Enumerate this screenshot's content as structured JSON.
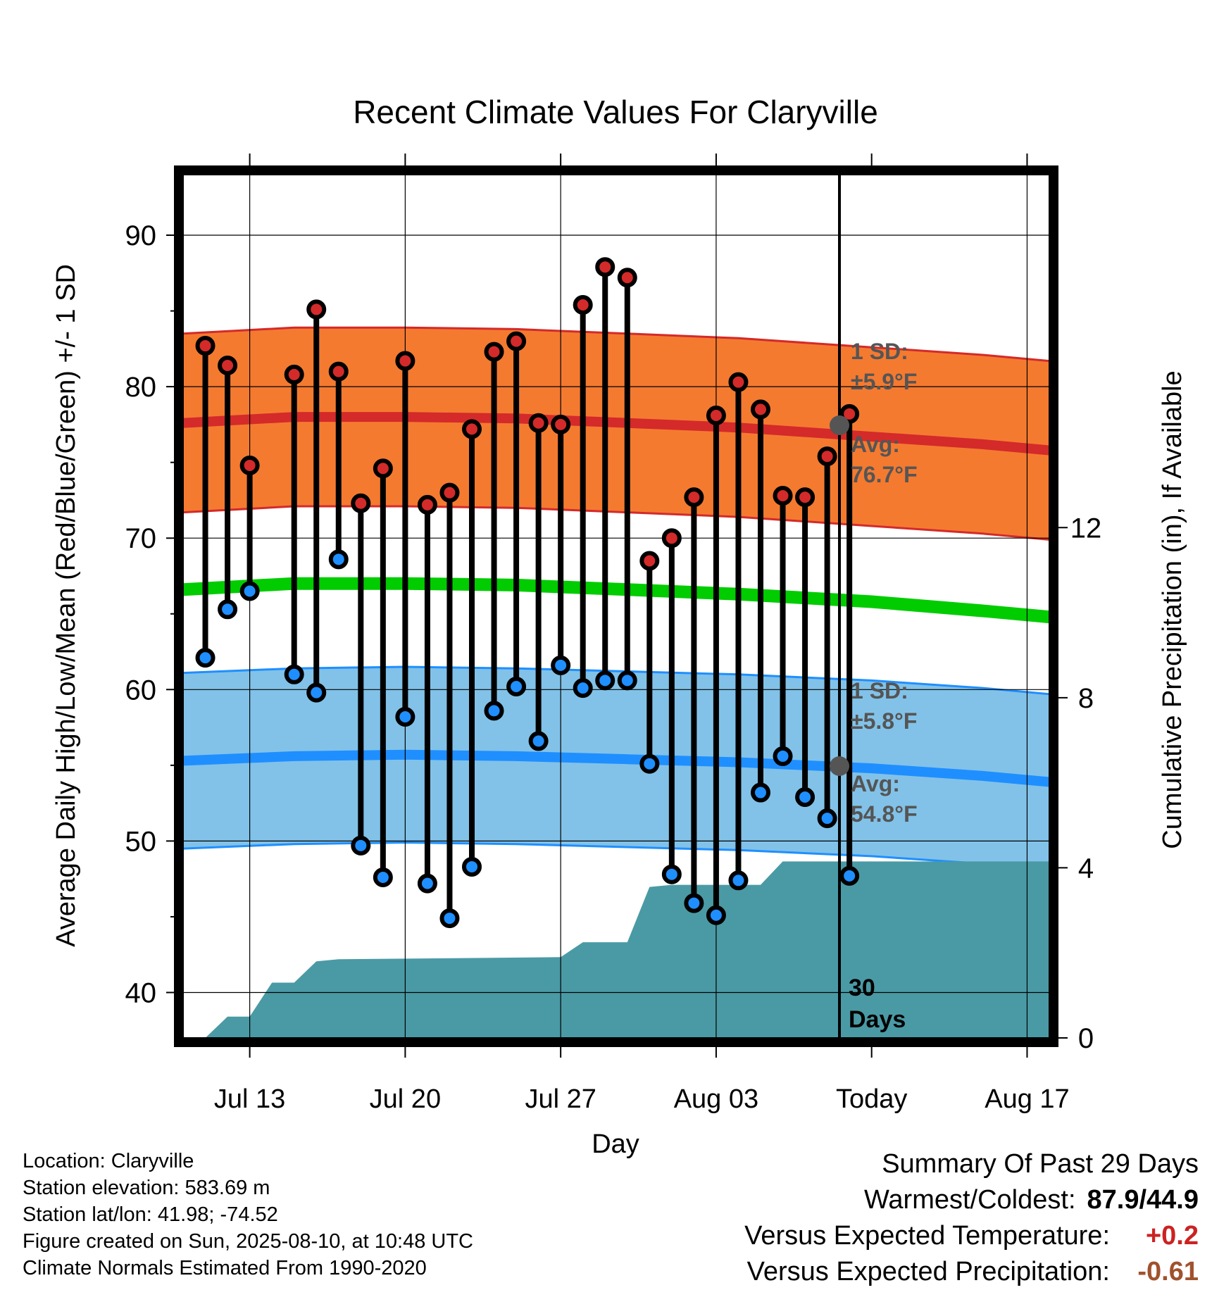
{
  "chart_data": {
    "type": "line",
    "title": "Recent Climate Values For Claryville",
    "xlabel": "Day",
    "ylabel": "Average Daily High/Low/Mean (Red/Blue/Green) +/- 1 SD",
    "y2label": "Cumulative Precipitation (in), If Available",
    "ylim": [
      37,
      94
    ],
    "y2lim": [
      0,
      20.3
    ],
    "yticks": [
      40,
      50,
      60,
      70,
      80,
      90
    ],
    "y2ticks": [
      0,
      4,
      8,
      12
    ],
    "x_tick_labels": [
      "Jul 13",
      "Jul 20",
      "Jul 27",
      "Aug 03",
      "Today",
      "Aug 17"
    ],
    "x_tick_days": [
      "2025-07-13",
      "2025-07-20",
      "2025-07-27",
      "2025-08-03",
      "2025-08-10",
      "2025-08-17"
    ],
    "xlim": [
      "2025-07-10",
      "2025-08-18"
    ],
    "today": "2025-08-10",
    "grid": true,
    "days": [
      "2025-07-11",
      "2025-07-12",
      "2025-07-13",
      "2025-07-15",
      "2025-07-16",
      "2025-07-17",
      "2025-07-18",
      "2025-07-19",
      "2025-07-20",
      "2025-07-21",
      "2025-07-22",
      "2025-07-23",
      "2025-07-24",
      "2025-07-25",
      "2025-07-26",
      "2025-07-27",
      "2025-07-28",
      "2025-07-29",
      "2025-07-30",
      "2025-07-31",
      "2025-08-01",
      "2025-08-02",
      "2025-08-03",
      "2025-08-04",
      "2025-08-05",
      "2025-08-06",
      "2025-08-07",
      "2025-08-08",
      "2025-08-09"
    ],
    "series": [
      {
        "name": "High",
        "color": "#d42a2a",
        "values": [
          82.7,
          81.4,
          74.8,
          80.8,
          85.1,
          81.0,
          72.3,
          74.6,
          81.7,
          72.2,
          73.0,
          77.2,
          82.3,
          83.0,
          77.6,
          77.5,
          85.4,
          87.9,
          87.2,
          68.5,
          70.0,
          72.7,
          78.1,
          80.3,
          78.5,
          72.8,
          72.7,
          75.4,
          78.2
        ]
      },
      {
        "name": "Low",
        "color": "#1f8fff",
        "values": [
          62.1,
          65.3,
          66.5,
          61.0,
          59.8,
          68.6,
          49.7,
          47.6,
          58.2,
          47.2,
          44.9,
          48.3,
          58.6,
          60.2,
          56.6,
          61.6,
          60.1,
          60.6,
          60.6,
          55.1,
          47.8,
          45.9,
          45.1,
          47.4,
          53.2,
          55.6,
          52.9,
          51.5,
          47.7
        ]
      }
    ],
    "normals": {
      "days": [
        "2025-07-10",
        "2025-07-15",
        "2025-07-20",
        "2025-07-25",
        "2025-07-30",
        "2025-08-04",
        "2025-08-10",
        "2025-08-15",
        "2025-08-18"
      ],
      "high_avg": [
        77.6,
        78.0,
        78.0,
        77.9,
        77.6,
        77.3,
        76.7,
        76.2,
        75.8
      ],
      "high_sd": 5.9,
      "low_avg": [
        55.3,
        55.6,
        55.7,
        55.6,
        55.4,
        55.2,
        54.8,
        54.3,
        53.9
      ],
      "low_sd": 5.8,
      "mean_avg": [
        66.6,
        67.0,
        67.0,
        66.9,
        66.6,
        66.3,
        65.8,
        65.2,
        64.8
      ],
      "high_color": "#f47a30",
      "low_color": "#82c2e8",
      "mean_color": "#00cc00",
      "precip_color": "#4a9aa5"
    },
    "precipitation": {
      "days": [
        "2025-07-11",
        "2025-07-12",
        "2025-07-13",
        "2025-07-14",
        "2025-07-15",
        "2025-07-16",
        "2025-07-17",
        "2025-07-27",
        "2025-07-28",
        "2025-07-30",
        "2025-07-31",
        "2025-08-01",
        "2025-08-05",
        "2025-08-06",
        "2025-08-18"
      ],
      "cumulative": [
        0.0,
        0.5,
        0.5,
        1.3,
        1.3,
        1.8,
        1.85,
        1.9,
        2.25,
        2.25,
        3.55,
        3.6,
        3.6,
        4.15,
        4.15
      ]
    },
    "annotations": {
      "high_sd_label": "1 SD:",
      "high_sd_value": "±5.9°F",
      "high_avg_label": "Avg:",
      "high_avg_value": "76.7°F",
      "low_sd_label": "1 SD:",
      "low_sd_value": "±5.8°F",
      "low_avg_label": "Avg:",
      "low_avg_value": "54.8°F",
      "days_number": "30",
      "days_word": "Days"
    }
  },
  "info": {
    "location": "Location: Claryville",
    "elevation": "Station elevation: 583.69 m",
    "latlon": "Station lat/lon: 41.98; -74.52",
    "created": "Figure created on Sun, 2025-08-10, at 10:48 UTC",
    "normals": "Climate Normals Estimated From 1990-2020"
  },
  "summary": {
    "title": "Summary Of Past 29 Days",
    "warm_cold_label": "Warmest/Coldest:",
    "warm_cold_value": "87.9/44.9",
    "temp_label": "Versus Expected Temperature:",
    "temp_value": "+0.2",
    "temp_color": "#cc2222",
    "precip_label": "Versus Expected Precipitation:",
    "precip_value": "-0.61",
    "precip_color": "#a0522d"
  }
}
